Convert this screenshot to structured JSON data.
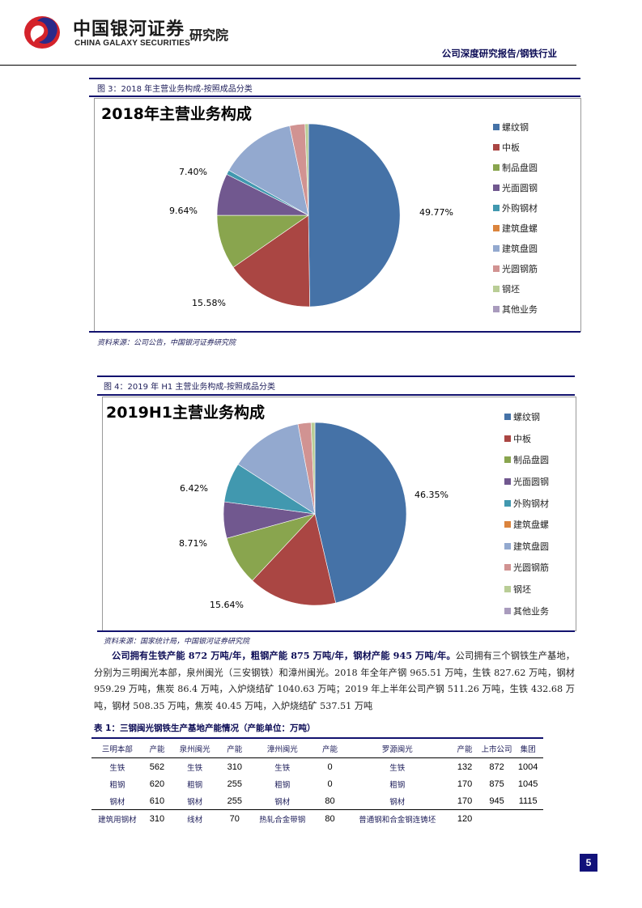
{
  "header": {
    "logo_cn": "中国银河证券",
    "logo_en": "CHINA GALAXY SECURITIES",
    "logo_institute": "研究院",
    "report_type": "公司深度研究报告/钢铁行业",
    "brand_colors": {
      "navy": "#12126e",
      "logo_red": "#d4232b",
      "logo_blue": "#2a2a8a"
    }
  },
  "figure3": {
    "caption": "图 3：2018 年主营业务构成-按照成品分类",
    "source": "资料来源：公司公告，中国银河证券研究院"
  },
  "figure4": {
    "caption": "图 4：2019 年 H1 主营业务构成-按照成品分类",
    "source": "资料来源：国家统计局，中国银河证券研究院"
  },
  "chart_data": [
    {
      "type": "pie",
      "title": "2018年主营业务构成",
      "categories": [
        "螺纹钢",
        "中板",
        "制品盘圆",
        "光面圆钢",
        "外购钢材",
        "建筑盘螺",
        "建筑盘圆",
        "光圆钢筋",
        "钢坯",
        "其他业务"
      ],
      "values": [
        49.77,
        15.58,
        9.64,
        7.4,
        0.8,
        0.0,
        13.5,
        2.7,
        0.6,
        0.0
      ],
      "labeled_values": {
        "螺纹钢": "49.77%",
        "中板": "15.58%",
        "制品盘圆": "9.64%",
        "光面圆钢": "7.40%"
      },
      "colors": [
        "#4572a7",
        "#aa4643",
        "#89a54e",
        "#71588f",
        "#4198af",
        "#db843d",
        "#93a9cf",
        "#d19392",
        "#b9cd96",
        "#a99bbd"
      ],
      "legend_position": "right",
      "unit": "%"
    },
    {
      "type": "pie",
      "title": "2019H1主营业务构成",
      "categories": [
        "螺纹钢",
        "中板",
        "制品盘圆",
        "光面圆钢",
        "外购钢材",
        "建筑盘螺",
        "建筑盘圆",
        "光圆钢筋",
        "钢坯",
        "其他业务"
      ],
      "values": [
        46.35,
        15.64,
        8.71,
        6.42,
        7.0,
        0.0,
        12.9,
        2.3,
        0.68,
        0.0
      ],
      "labeled_values": {
        "螺纹钢": "46.35%",
        "中板": "15.64%",
        "制品盘圆": "8.71%",
        "光面圆钢": "6.42%"
      },
      "colors": [
        "#4572a7",
        "#aa4643",
        "#89a54e",
        "#71588f",
        "#4198af",
        "#db843d",
        "#93a9cf",
        "#d19392",
        "#b9cd96",
        "#a99bbd"
      ],
      "legend_position": "right",
      "unit": "%"
    },
    {
      "type": "table",
      "title": "表 1：三钢闽光钢铁生产基地产能情况（产能单位：万吨）",
      "columns": [
        "三明本部",
        "产能",
        "泉州闽光",
        "产能",
        "漳州闽光",
        "产能",
        "罗源闽光",
        "产能",
        "上市公司",
        "集团"
      ],
      "rows": [
        [
          "生铁",
          "562",
          "生铁",
          "310",
          "生铁",
          "0",
          "生铁",
          "132",
          "872",
          "1004"
        ],
        [
          "粗钢",
          "620",
          "粗钢",
          "255",
          "粗钢",
          "0",
          "粗钢",
          "170",
          "875",
          "1045"
        ],
        [
          "钢材",
          "610",
          "钢材",
          "255",
          "钢材",
          "80",
          "钢材",
          "170",
          "945",
          "1115"
        ],
        [
          "建筑用钢材",
          "310",
          "线材",
          "70",
          "热轧合金带钢",
          "80",
          "普通钢和合金钢连铸坯",
          "120",
          "",
          ""
        ]
      ]
    }
  ],
  "body": {
    "bold_lead": "公司拥有生铁产能 872 万吨/年，粗钢产能 875 万吨/年，钢材产能 945 万吨/年。",
    "text": "公司拥有三个钢铁生产基地，分别为三明闽光本部，泉州闽光（三安钢铁）和漳州闽光。2018 年全年产钢 965.51 万吨，生铁 827.62 万吨，钢材 959.29 万吨，焦炭 86.4 万吨，入炉烧结矿 1040.63 万吨；2019 年上半年公司产钢 511.26 万吨，生铁 432.68 万吨，钢材 508.35 万吨，焦炭 40.45 万吨，入炉烧结矿 537.51 万吨"
  },
  "footer": {
    "page_number": "5"
  }
}
